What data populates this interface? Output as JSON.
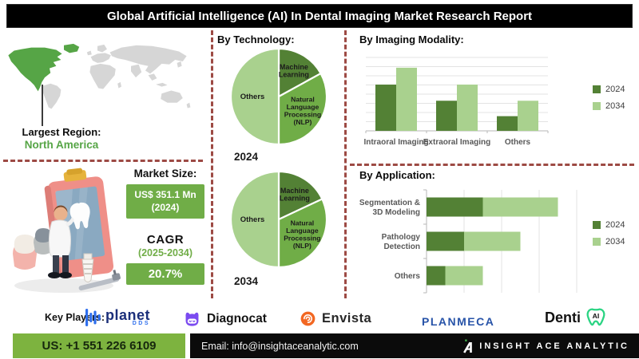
{
  "title": "Global Artificial Intelligence (AI) In Dental Imaging Market Research Report",
  "colors": {
    "accent_dark_green": "#538135",
    "accent_mid_green": "#70ad47",
    "accent_light_green": "#a9d18e",
    "divider_red": "#9d4a44",
    "contact_green": "#7db33f",
    "region_green": "#56a546",
    "map_gray": "#d6d6d6",
    "title_bg": "#000000"
  },
  "region": {
    "label": "Largest Region:",
    "value": "North America"
  },
  "market": {
    "size_label": "Market Size:",
    "size_value": "US$ 351.1 Mn (2024)",
    "cagr_label": "CAGR",
    "cagr_period": "(2025-2034)",
    "cagr_value": "20.7%"
  },
  "chart_data": [
    {
      "type": "pie",
      "title": "By Technology:",
      "year_label": "2024",
      "labels": [
        "Machine Learning",
        "Natural Language Processing (NLP)",
        "Others"
      ],
      "label_lines": [
        [
          "Machine",
          "Learning"
        ],
        [
          "Natural",
          "Language",
          "Processing",
          "(NLP)"
        ],
        [
          "Others"
        ]
      ],
      "values": [
        17,
        33,
        50
      ],
      "colors": [
        "#538135",
        "#70ad47",
        "#a9d18e"
      ],
      "legend_position": "none"
    },
    {
      "type": "pie",
      "title": "By Technology:",
      "year_label": "2034",
      "labels": [
        "Machine Learning",
        "Natural Language Processing (NLP)",
        "Others"
      ],
      "label_lines": [
        [
          "Machine",
          "Learning"
        ],
        [
          "Natural",
          "Language",
          "Processing",
          "(NLP)"
        ],
        [
          "Others"
        ]
      ],
      "values": [
        18,
        32,
        50
      ],
      "colors": [
        "#538135",
        "#70ad47",
        "#a9d18e"
      ],
      "legend_position": "none"
    },
    {
      "type": "bar",
      "title": "By Imaging Modality:",
      "categories": [
        "Intraoral Imaging",
        "Extraoral Imaging",
        "Others"
      ],
      "series": [
        {
          "name": "2024",
          "color": "#538135",
          "values": [
            63,
            41,
            20
          ]
        },
        {
          "name": "2034",
          "color": "#a9d18e",
          "values": [
            86,
            63,
            41
          ]
        }
      ],
      "ylim": [
        0,
        100
      ],
      "grid": true,
      "legend_position": "right"
    },
    {
      "type": "bar-horizontal-stacked",
      "title": "By Application:",
      "categories": [
        "Segmentation & 3D Modeling",
        "Pathology Detection",
        "Others"
      ],
      "category_lines": [
        [
          "Segmentation &",
          "3D Modeling"
        ],
        [
          "Pathology",
          "Detection"
        ],
        [
          "Others"
        ]
      ],
      "series": [
        {
          "name": "2024",
          "color": "#538135",
          "values": [
            1.5,
            1.0,
            0.5
          ]
        },
        {
          "name": "2034",
          "color": "#a9d18e",
          "values": [
            2.0,
            1.5,
            1.0
          ]
        }
      ],
      "xlim": [
        0,
        4.5
      ],
      "grid": true,
      "legend_position": "right"
    }
  ],
  "key_players": {
    "label": "Key Players:",
    "players": [
      {
        "name": "planet",
        "sub": "DDS"
      },
      {
        "name": "Diagnocat"
      },
      {
        "name": "Envista"
      },
      {
        "name": "PLANMECA"
      },
      {
        "name": "Denti",
        "badge": "AI"
      }
    ]
  },
  "footer": {
    "phone": "US: +1 551 226 6109",
    "email": "Email: info@insightaceanalytic.com",
    "brand": "INSIGHT ACE ANALYTIC"
  }
}
